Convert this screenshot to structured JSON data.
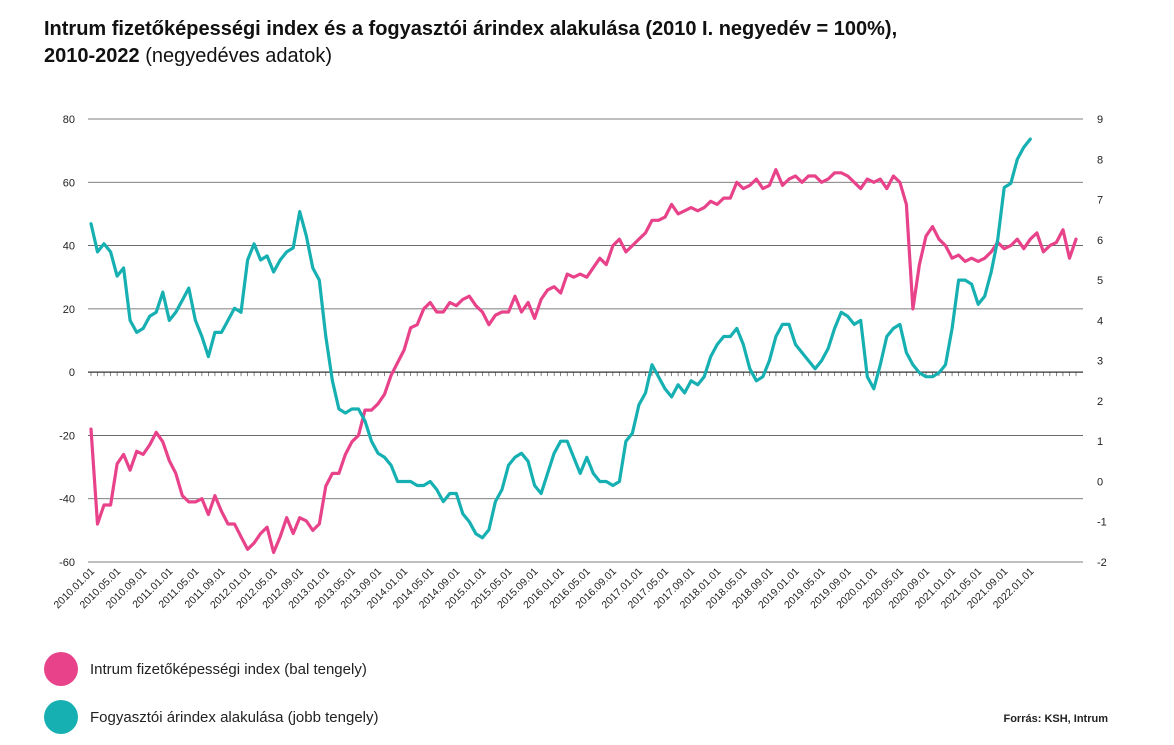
{
  "header": {
    "title_bold_1": "Intrum fizetőképességi index és a fogyasztói árindex alakulása (2010 I. negyedév = 100%),",
    "title_bold_2": "2010-2022",
    "title_light": " (negyedéves adatok)"
  },
  "legend": {
    "series1_label": "Intrum fizetőképességi index (bal tengely)",
    "series2_label": "Fogyasztói árindex alakulása (jobb tengely)"
  },
  "source": "Forrás: KSH, Intrum",
  "colors": {
    "series1": "#e8438a",
    "series2": "#17b0b2",
    "grid": "#555555",
    "axis_text": "#222222"
  },
  "chart_data": {
    "type": "line",
    "title": "Intrum fizetőképességi index és a fogyasztói árindex alakulása (2010 I. negyedév = 100%), 2010-2022 (negyedéves adatok)",
    "left_axis": {
      "ylim": [
        -60,
        80
      ],
      "ticks": [
        "80",
        "60",
        "40",
        "20",
        "0",
        "-20",
        "-40",
        "-60"
      ]
    },
    "right_axis": {
      "ylim": [
        -2,
        9
      ],
      "ticks": [
        "9",
        "8",
        "7",
        "6",
        "5",
        "4",
        "3",
        "2",
        "1",
        "0",
        "-1",
        "-2"
      ]
    },
    "x_tick_labels": [
      "2010.01.01",
      "2010.05.01",
      "2010.09.01",
      "2011.01.01",
      "2011.05.01",
      "2011.09.01",
      "2012.01.01",
      "2012.05.01",
      "2012.09.01",
      "2013.01.01",
      "2013.05.01",
      "2013.09.01",
      "2014.01.01",
      "2014.05.01",
      "2014.09.01",
      "2015.01.01",
      "2015.05.01",
      "2015.09.01",
      "2016.01.01",
      "2016.05.01",
      "2016.09.01",
      "2017.01.01",
      "2017.05.01",
      "2017.09.01",
      "2018.01.01",
      "2018.05.01",
      "2018.09.01",
      "2019.01.01",
      "2019.05.01",
      "2019.09.01",
      "2020.01.01",
      "2020.05.01",
      "2020.09.01",
      "2021.01.01",
      "2021.05.01",
      "2021.09.01",
      "2022.01.01"
    ],
    "grid": true,
    "legend_position": "bottom-left",
    "series": [
      {
        "name": "Intrum fizetőképességi index (bal tengely)",
        "axis": "left",
        "values": [
          -18,
          -48,
          -42,
          -42,
          -29,
          -26,
          -31,
          -25,
          -26,
          -23,
          -19,
          -22,
          -28,
          -32,
          -39,
          -41,
          -41,
          -40,
          -45,
          -39,
          -44,
          -48,
          -48,
          -52,
          -56,
          -54,
          -51,
          -49,
          -57,
          -52,
          -46,
          -51,
          -46,
          -47,
          -50,
          -48,
          -36,
          -32,
          -32,
          -26,
          -22,
          -20,
          -12,
          -12,
          -10,
          -7,
          -1,
          3,
          7,
          14,
          15,
          20,
          22,
          19,
          19,
          22,
          21,
          23,
          24,
          21,
          19,
          15,
          18,
          19,
          19,
          24,
          19,
          22,
          17,
          23,
          26,
          27,
          25,
          31,
          30,
          31,
          30,
          33,
          36,
          34,
          40,
          42,
          38,
          40,
          42,
          44,
          48,
          48,
          49,
          53,
          50,
          51,
          52,
          51,
          52,
          54,
          53,
          55,
          55,
          60,
          58,
          59,
          61,
          58,
          59,
          64,
          59,
          61,
          62,
          60,
          62,
          62,
          60,
          61,
          63,
          63,
          62,
          60,
          58,
          61,
          60,
          61,
          58,
          62,
          60,
          53,
          20,
          34,
          43,
          46,
          42,
          40,
          36,
          37,
          35,
          36,
          35,
          36,
          38,
          41,
          39,
          40,
          42,
          39,
          42,
          44,
          38,
          40,
          41,
          45,
          36,
          42
        ]
      },
      {
        "name": "Fogyasztói árindex alakulása (jobb tengely)",
        "axis": "right",
        "values": [
          6.4,
          5.7,
          5.9,
          5.7,
          5.1,
          5.3,
          4.0,
          3.7,
          3.8,
          4.1,
          4.2,
          4.7,
          4.0,
          4.2,
          4.5,
          4.8,
          4.0,
          3.6,
          3.1,
          3.7,
          3.7,
          4.0,
          4.3,
          4.2,
          5.5,
          5.9,
          5.5,
          5.6,
          5.2,
          5.5,
          5.7,
          5.8,
          6.7,
          6.1,
          5.3,
          5.0,
          3.6,
          2.5,
          1.8,
          1.7,
          1.8,
          1.8,
          1.5,
          1.0,
          0.7,
          0.6,
          0.4,
          0.0,
          0.0,
          0.0,
          -0.1,
          -0.1,
          0.0,
          -0.2,
          -0.5,
          -0.3,
          -0.3,
          -0.8,
          -1.0,
          -1.3,
          -1.4,
          -1.2,
          -0.5,
          -0.2,
          0.4,
          0.6,
          0.7,
          0.5,
          -0.1,
          -0.3,
          0.2,
          0.7,
          1.0,
          1.0,
          0.6,
          0.2,
          0.6,
          0.2,
          0.0,
          0.0,
          -0.1,
          0.0,
          1.0,
          1.2,
          1.9,
          2.2,
          2.9,
          2.6,
          2.3,
          2.1,
          2.4,
          2.2,
          2.5,
          2.4,
          2.6,
          3.1,
          3.4,
          3.6,
          3.6,
          3.8,
          3.4,
          2.8,
          2.5,
          2.6,
          3.0,
          3.6,
          3.9,
          3.9,
          3.4,
          3.2,
          3.0,
          2.8,
          3.0,
          3.3,
          3.8,
          4.2,
          4.1,
          3.9,
          4.0,
          2.6,
          2.3,
          2.9,
          3.6,
          3.8,
          3.9,
          3.2,
          2.9,
          2.7,
          2.6,
          2.6,
          2.7,
          2.9,
          3.8,
          5.0,
          5.0,
          4.9,
          4.4,
          4.6,
          5.2,
          6.0,
          7.3,
          7.4,
          8.0,
          8.3,
          8.5
        ]
      }
    ]
  }
}
